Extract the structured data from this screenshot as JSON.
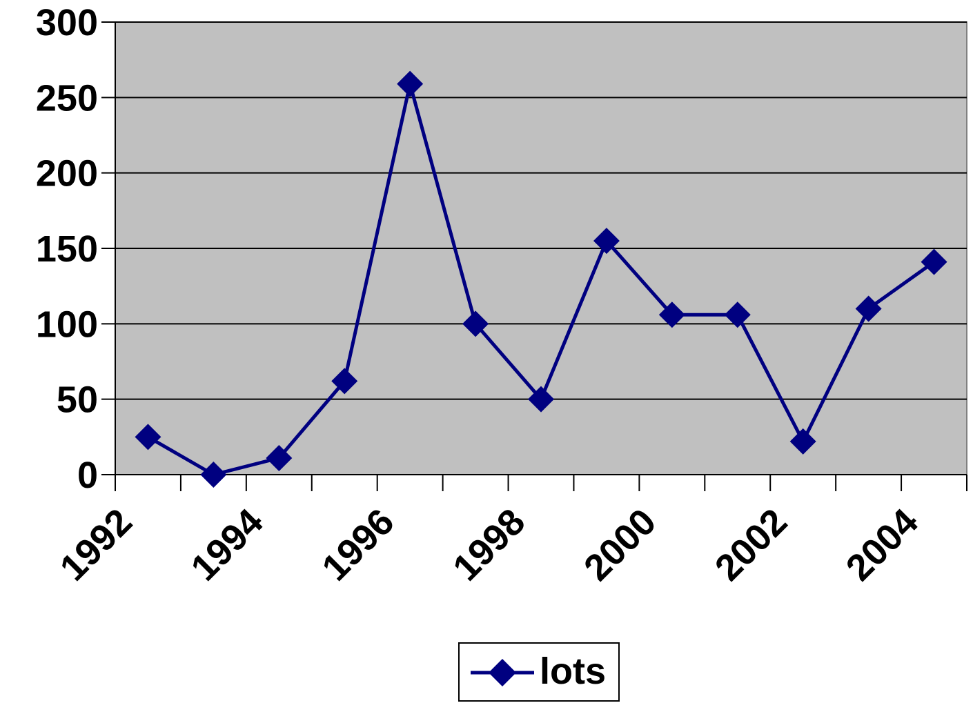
{
  "chart_data": {
    "type": "line",
    "x": [
      1992,
      1993,
      1994,
      1995,
      1996,
      1997,
      1998,
      1999,
      2000,
      2001,
      2002,
      2003,
      2004
    ],
    "x_tick_labels": [
      "1992",
      "1994",
      "1996",
      "1998",
      "2000",
      "2002",
      "2004"
    ],
    "y_tick_labels": [
      "0",
      "50",
      "100",
      "150",
      "200",
      "250",
      "300"
    ],
    "ylim": [
      0,
      300
    ],
    "series": [
      {
        "name": "lots",
        "values": [
          25,
          0,
          11,
          62,
          259,
          100,
          50,
          155,
          106,
          106,
          22,
          110,
          141
        ]
      }
    ],
    "grid": "horizontal",
    "legend_placement": "bottom",
    "colors": {
      "plot_background": "#c0c0c0",
      "series": "#000080",
      "gridline": "#000000"
    }
  }
}
